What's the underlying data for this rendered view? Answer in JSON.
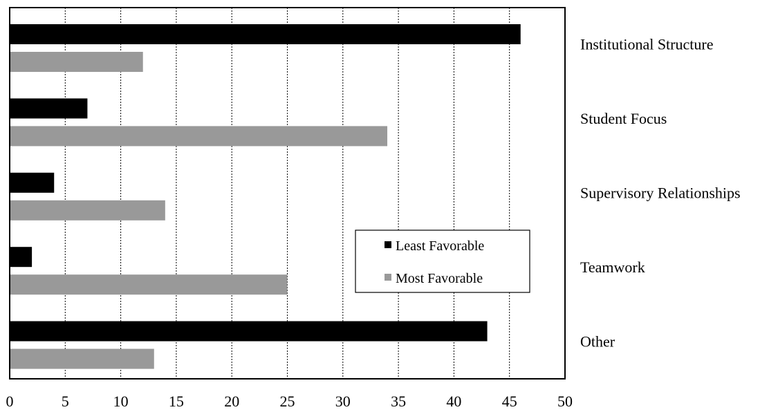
{
  "chart_data": {
    "type": "bar",
    "orientation": "horizontal",
    "categories": [
      "Institutional Structure",
      "Student Focus",
      "Supervisory Relationships",
      "Teamwork",
      "Other"
    ],
    "series": [
      {
        "name": "Least Favorable",
        "values": [
          46,
          7,
          4,
          2,
          43
        ],
        "color": "#000000"
      },
      {
        "name": "Most Favorable",
        "values": [
          12,
          34,
          14,
          25,
          13
        ],
        "color": "#999999"
      }
    ],
    "xlim": [
      0,
      50
    ],
    "xticks": [
      0,
      5,
      10,
      15,
      20,
      25,
      30,
      35,
      40,
      45,
      50
    ],
    "grid": "vertical dashed",
    "legend_position": "center-right"
  }
}
